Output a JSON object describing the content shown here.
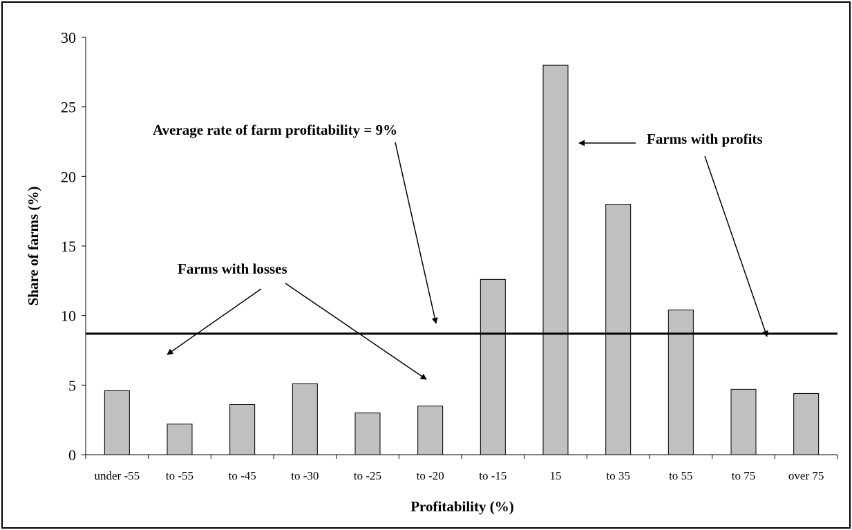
{
  "chart_data": {
    "type": "bar",
    "categories": [
      "under -55",
      "to -55",
      "to -45",
      "to -30",
      "to -25",
      "to -20",
      "to -15",
      "15",
      "to 35",
      "to 55",
      "to 75",
      "over 75"
    ],
    "values": [
      4.6,
      2.2,
      3.6,
      5.1,
      3.0,
      3.5,
      12.6,
      28.0,
      18.0,
      10.4,
      4.7,
      4.4
    ],
    "xlabel": "Profitability (%)",
    "ylabel": "Share of farms (%)",
    "ylim": [
      0,
      30
    ],
    "yticks": [
      0,
      5,
      10,
      15,
      20,
      25,
      30
    ],
    "grid": false,
    "legend": "none",
    "bar_color": "#c0c0c0",
    "bar_edge_color": "#000000",
    "reference_line": {
      "y": 8.7
    },
    "annotations": [
      {
        "id": "average",
        "text": "Average rate of farm profitability = 9%"
      },
      {
        "id": "profits",
        "text": "Farms with profits"
      },
      {
        "id": "losses",
        "text": "Farms with losses"
      }
    ]
  }
}
